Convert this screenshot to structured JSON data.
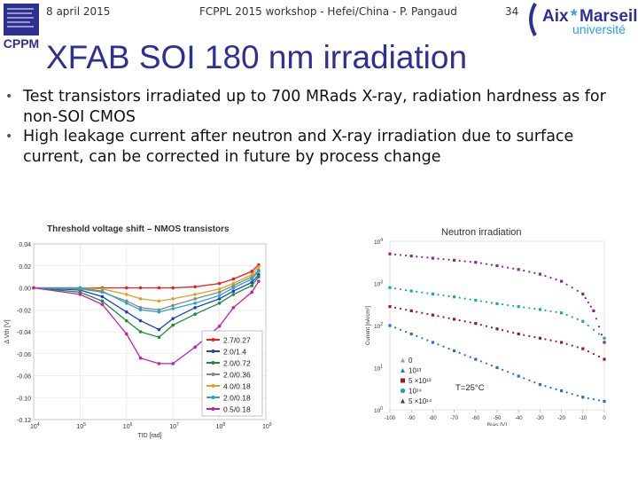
{
  "header": {
    "date": "8 april 2015",
    "event": "FCPPL 2015 workshop - Hefei/China - P. Pangaud",
    "page_number": "34"
  },
  "logos": {
    "left_label": "CPPM",
    "right_part1": "Aix",
    "right_star": "*",
    "right_part2": "Marseille",
    "right_sub": "université"
  },
  "title": "XFAB SOI 180 nm  irradiation",
  "bullets": [
    "Test transistors irradiated up to 700 MRads X-ray, radiation hardness as for non-SOI CMOS",
    "High leakage current after neutron and X-ray irradiation due to surface current, can be corrected in future by process change"
  ],
  "colors": {
    "title": "#2e3192"
  },
  "chart_data": [
    {
      "type": "line",
      "title": "Threshold voltage shift – NMOS transistors",
      "xlabel": "TID [rad]",
      "ylabel": "Δ Vth [V]",
      "xscale": "log",
      "xlim": [
        10000,
        1000000000
      ],
      "ylim": [
        -0.12,
        0.04
      ],
      "x_ticks": [
        {
          "exp": "4",
          "v": 10000
        },
        {
          "exp": "5",
          "v": 100000
        },
        {
          "exp": "6",
          "v": 1000000
        },
        {
          "exp": "7",
          "v": 10000000
        },
        {
          "exp": "8",
          "v": 100000000
        },
        {
          "exp": "9",
          "v": 1000000000
        }
      ],
      "y_ticks": [
        "0.04",
        "0.02",
        "0.00",
        "-0.02",
        "-0.04",
        "-0.06",
        "-0.08",
        "-0.10",
        "-0.12"
      ],
      "x": [
        10000,
        100000,
        300000,
        1000000,
        2000000,
        5000000,
        10000000,
        30000000,
        100000000,
        200000000,
        500000000,
        700000000
      ],
      "series": [
        {
          "name": "2.7/0.27",
          "color": "#e8201e",
          "values": [
            0,
            0,
            0,
            0,
            0,
            0,
            0,
            0.001,
            0.004,
            0.008,
            0.015,
            0.021
          ]
        },
        {
          "name": "2.0/1.4",
          "color": "#2040c8",
          "values": [
            0,
            -0.002,
            -0.008,
            -0.022,
            -0.03,
            -0.038,
            -0.028,
            -0.018,
            -0.01,
            -0.003,
            0.005,
            0.012
          ]
        },
        {
          "name": "2.0/0.72",
          "color": "#1e8a3a",
          "values": [
            0,
            -0.004,
            -0.012,
            -0.03,
            -0.04,
            -0.045,
            -0.034,
            -0.024,
            -0.014,
            -0.006,
            0.002,
            0.01
          ]
        },
        {
          "name": "2.0/0.36",
          "color": "#888888",
          "values": [
            0,
            -0.001,
            -0.004,
            -0.012,
            -0.018,
            -0.02,
            -0.016,
            -0.01,
            -0.004,
            0.002,
            0.01,
            0.016
          ]
        },
        {
          "name": "4.0/0.18",
          "color": "#e0a020",
          "values": [
            0,
            0,
            -0.001,
            -0.006,
            -0.01,
            -0.012,
            -0.01,
            -0.006,
            -0.001,
            0.004,
            0.012,
            0.019
          ]
        },
        {
          "name": "2.0/0.18",
          "color": "#20a8c8",
          "values": [
            0,
            0,
            -0.003,
            -0.014,
            -0.02,
            -0.022,
            -0.019,
            -0.014,
            -0.007,
            0,
            0.008,
            0.015
          ]
        },
        {
          "name": "0.5/0.18",
          "color": "#c020a8",
          "values": [
            0,
            -0.006,
            -0.015,
            -0.042,
            -0.064,
            -0.069,
            -0.069,
            -0.054,
            -0.035,
            -0.018,
            -0.004,
            0.006
          ]
        }
      ]
    },
    {
      "type": "scatter",
      "title": "Neutron irradiation",
      "xlabel": "Bias [V]",
      "ylabel": "Current [nA/cm²]",
      "xlim": [
        -100,
        0
      ],
      "yscale": "log",
      "ylim_exp": [
        0,
        4
      ],
      "x_ticks": [
        "-100",
        "-90",
        "-80",
        "-70",
        "-60",
        "-50",
        "-40",
        "-30",
        "-20",
        "-10",
        "0"
      ],
      "y_ticks": [
        {
          "base": "10",
          "exp": "4"
        },
        {
          "base": "10",
          "exp": "3"
        },
        {
          "base": "10",
          "exp": "2"
        },
        {
          "base": "10",
          "exp": "1"
        },
        {
          "base": "10",
          "exp": "0"
        }
      ],
      "annotation": "T=25°C",
      "legend": [
        {
          "label": "0",
          "color": "#9aa0a8",
          "marker": "triangle"
        },
        {
          "label": "10¹³",
          "color": "#2a6fd0",
          "marker": "triangle"
        },
        {
          "label": "5 ×10¹³",
          "color": "#9a1a1a",
          "marker": "square"
        },
        {
          "label": "10¹⁴",
          "color": "#1aa8a0",
          "marker": "circle"
        },
        {
          "label": "5 ×10¹⁴",
          "color": "#4a2a8a",
          "marker": "triangle"
        }
      ],
      "series": [
        {
          "name": "5 ×10¹⁴",
          "color": "#8a2a8a",
          "x": [
            -100,
            -90,
            -80,
            -70,
            -60,
            -50,
            -40,
            -30,
            -20,
            -10,
            -5,
            0
          ],
          "y_exp": [
            3.7,
            3.65,
            3.6,
            3.55,
            3.5,
            3.42,
            3.33,
            3.22,
            3.05,
            2.75,
            2.35,
            1.6
          ]
        },
        {
          "name": "10¹⁴",
          "color": "#1aa8a0",
          "x": [
            -100,
            -90,
            -80,
            -70,
            -60,
            -50,
            -40,
            -30,
            -20,
            -10,
            0
          ],
          "y_exp": [
            2.9,
            2.82,
            2.75,
            2.68,
            2.6,
            2.52,
            2.45,
            2.38,
            2.3,
            2.1,
            1.7
          ]
        },
        {
          "name": "5 ×10¹³",
          "color": "#9a1a1a",
          "x": [
            -100,
            -90,
            -80,
            -70,
            -60,
            -50,
            -40,
            -30,
            -20,
            -10,
            0
          ],
          "y_exp": [
            2.45,
            2.35,
            2.25,
            2.15,
            2.05,
            1.92,
            1.8,
            1.7,
            1.6,
            1.45,
            1.2
          ]
        },
        {
          "name": "10¹³",
          "color": "#2a6fd0",
          "x": [
            -100,
            -90,
            -80,
            -70,
            -60,
            -50,
            -40,
            -30,
            -20,
            -10,
            0
          ],
          "y_exp": [
            2.0,
            1.8,
            1.6,
            1.4,
            1.2,
            1.0,
            0.8,
            0.6,
            0.45,
            0.3,
            0.2
          ]
        }
      ]
    }
  ]
}
